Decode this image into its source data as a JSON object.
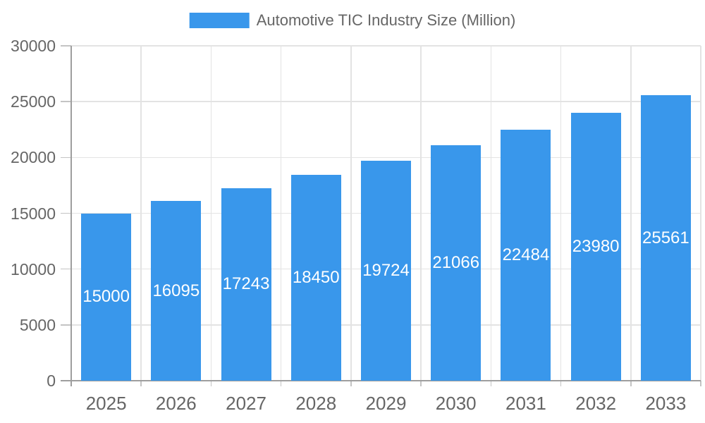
{
  "chart_data": {
    "type": "bar",
    "title": "Automotive TIC Industry Size (Million)",
    "legend_label": "Automotive TIC Industry Size (Million)",
    "legend_position": "top",
    "categories": [
      "2025",
      "2026",
      "2027",
      "2028",
      "2029",
      "2030",
      "2031",
      "2032",
      "2033"
    ],
    "series": [
      {
        "name": "Automotive TIC Industry Size (Million)",
        "values": [
          15000,
          16095,
          17243,
          18450,
          19724,
          21066,
          22484,
          23980,
          25561
        ]
      }
    ],
    "xlabel": "",
    "ylabel": "",
    "ylim": [
      0,
      30000
    ],
    "yticks": [
      0,
      5000,
      10000,
      15000,
      20000,
      25000,
      30000
    ],
    "grid": "on",
    "data_labels": "inside-center",
    "colors": {
      "bar": "#3997EB",
      "bar_value_text": "#ffffff",
      "axis_text": "#666666",
      "legend_text": "#666666",
      "gridline": "#e3e3e3",
      "axis_line": "#9e9e9e",
      "background": "#ffffff"
    }
  }
}
